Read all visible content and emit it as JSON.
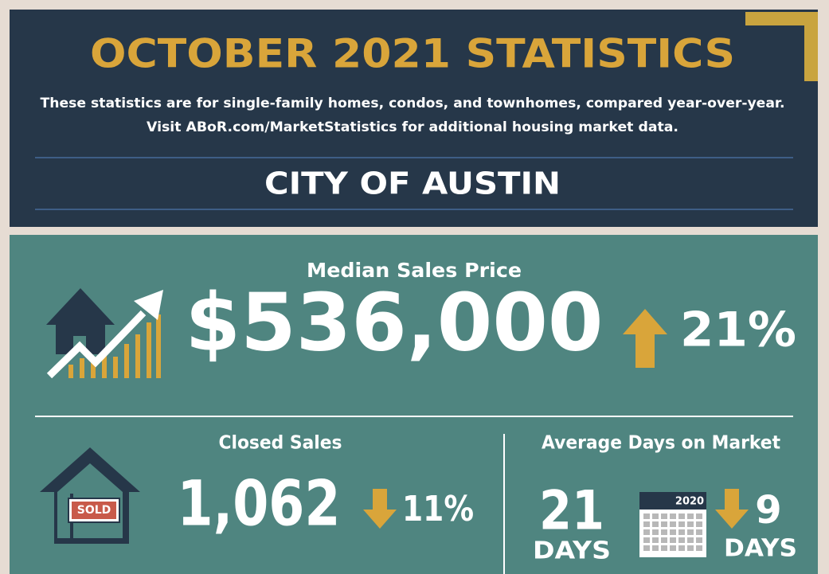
{
  "header": {
    "title": "OCTOBER 2021 STATISTICS",
    "subtitle_lines": [
      "These statistics are for single-family homes, condos, and townhomes, compared year-over-year.",
      "Visit ABoR.com/MarketStatistics for additional housing market data."
    ],
    "location": "CITY OF AUSTIN"
  },
  "median_sales_price": {
    "label": "Median Sales Price",
    "value": "$536,000",
    "change": "21%"
  },
  "closed_sales": {
    "label": "Closed Sales",
    "sign": "SOLD",
    "value": "1,062",
    "change": "11%"
  },
  "average_days_on_market": {
    "label": "Average Days on Market",
    "value": "21",
    "unit": "DAYS",
    "calendar_year": "2020",
    "change": "9",
    "change_unit": "DAYS"
  }
}
